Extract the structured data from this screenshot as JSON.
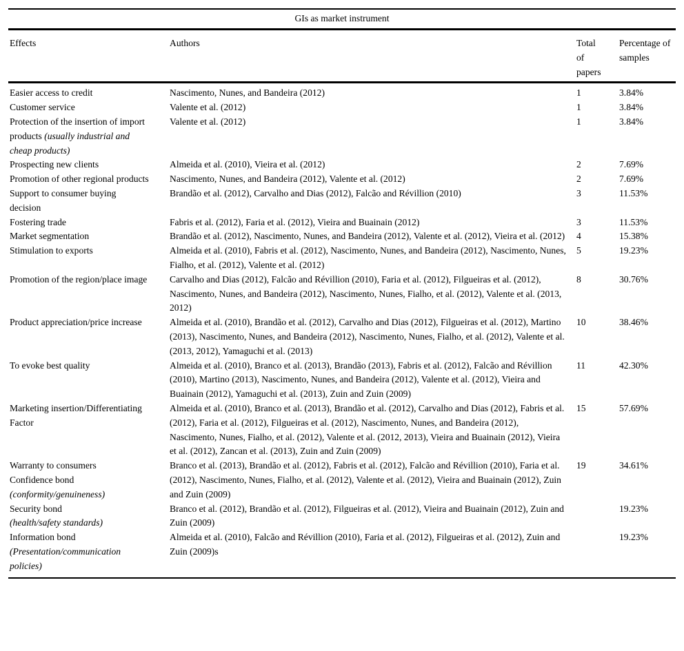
{
  "table": {
    "title": "GIs as market instrument",
    "columns": [
      "Effects",
      "Authors",
      "Total of papers",
      "Percentage of samples"
    ],
    "rows": [
      {
        "effect": [
          {
            "text": "Easier access to credit",
            "italic": false
          }
        ],
        "authors": "Nascimento, Nunes, and Bandeira (2012)",
        "total": "1",
        "percentage": "3.84%"
      },
      {
        "effect": [
          {
            "text": "Customer service",
            "italic": false
          }
        ],
        "authors": "Valente et al. (2012)",
        "total": "1",
        "percentage": "3.84%"
      },
      {
        "effect": [
          {
            "text": "Protection of the insertion of import products ",
            "italic": false
          },
          {
            "text": "(usually industrial and cheap products)",
            "italic": true
          }
        ],
        "authors": "Valente et al. (2012)",
        "total": "1",
        "percentage": "3.84%"
      },
      {
        "effect": [
          {
            "text": "Prospecting new clients",
            "italic": false
          }
        ],
        "authors": "Almeida et al. (2010), Vieira et al. (2012)",
        "total": "2",
        "percentage": "7.69%"
      },
      {
        "effect": [
          {
            "text": "Promotion of other regional products",
            "italic": false
          }
        ],
        "authors": "Nascimento, Nunes, and Bandeira (2012), Valente et al. (2012)",
        "total": "2",
        "percentage": "7.69%"
      },
      {
        "effect": [
          {
            "text": "Support to consumer buying decision",
            "italic": false
          }
        ],
        "authors": "Brandão et al. (2012), Carvalho and Dias (2012), Falcão and Révillion (2010)",
        "total": "3",
        "percentage": "11.53%"
      },
      {
        "effect": [
          {
            "text": "Fostering trade",
            "italic": false
          }
        ],
        "authors": "Fabris et al. (2012), Faria et al. (2012), Vieira and Buainain (2012)",
        "total": "3",
        "percentage": "11.53%"
      },
      {
        "effect": [
          {
            "text": "Market segmentation",
            "italic": false
          }
        ],
        "authors": "Brandão et al. (2012), Nascimento, Nunes, and Bandeira (2012), Valente et al. (2012), Vieira et al. (2012)",
        "total": "4",
        "percentage": "15.38%"
      },
      {
        "effect": [
          {
            "text": "Stimulation to exports",
            "italic": false
          }
        ],
        "authors": "Almeida et al. (2010), Fabris et al. (2012), Nascimento, Nunes, and Bandeira (2012), Nascimento, Nunes, Fialho, et al. (2012), Valente et al. (2012)",
        "total": "5",
        "percentage": "19.23%"
      },
      {
        "effect": [
          {
            "text": "Promotion of the region/place image",
            "italic": false
          }
        ],
        "authors": "Carvalho and Dias (2012), Falcão and Révillion (2010), Faria et al. (2012), Filgueiras et al. (2012), Nascimento, Nunes, and Bandeira (2012), Nascimento, Nunes, Fialho, et al. (2012), Valente et al. (2013, 2012)",
        "total": "8",
        "percentage": "30.76%"
      },
      {
        "effect": [
          {
            "text": "Product appreciation/price increase",
            "italic": false
          }
        ],
        "authors": "Almeida et al. (2010), Brandão et al. (2012), Carvalho and Dias (2012), Filgueiras et al. (2012), Martino (2013), Nascimento, Nunes, and Bandeira (2012), Nascimento, Nunes, Fialho, et al. (2012), Valente et al. (2013, 2012), Yamaguchi et al. (2013)",
        "total": "10",
        "percentage": "38.46%"
      },
      {
        "effect": [
          {
            "text": "To evoke best quality",
            "italic": false
          }
        ],
        "authors": "Almeida et al. (2010), Branco et al. (2013), Brandão (2013), Fabris et al. (2012), Falcão and Révillion (2010), Martino (2013), Nascimento, Nunes, and Bandeira (2012), Valente et al. (2012), Vieira and Buainain (2012), Yamaguchi et al. (2013), Zuin and Zuin (2009)",
        "total": "11",
        "percentage": "42.30%"
      },
      {
        "effect": [
          {
            "text": "Marketing insertion/Differentiating Factor",
            "italic": false
          }
        ],
        "authors": "Almeida et al. (2010), Branco et al. (2013), Brandão et al. (2012), Carvalho and Dias (2012), Fabris et al. (2012), Faria et al. (2012), Filgueiras et al. (2012), Nascimento, Nunes, and Bandeira (2012), Nascimento, Nunes, Fialho, et al. (2012), Valente et al. (2012, 2013), Vieira and Buainain (2012), Vieira et al. (2012), Zancan et al. (2013), Zuin and Zuin (2009)",
        "total": "15",
        "percentage": "57.69%"
      },
      {
        "effect": [
          {
            "text": "Warranty to consumers\nConfidence bond\n",
            "italic": false
          },
          {
            "text": "(conformity/genuineness)",
            "italic": true
          }
        ],
        "authors": "Branco et al. (2013), Brandão et al. (2012), Fabris et al. (2012), Falcão and Révillion (2010), Faria et al. (2012), Nascimento, Nunes, Fialho, et al. (2012), Valente et al. (2012), Vieira and Buainain (2012), Zuin and Zuin (2009)",
        "total": "19",
        "percentage": "34.61%"
      },
      {
        "effect": [
          {
            "text": "Security bond\n",
            "italic": false
          },
          {
            "text": "(health/safety standards)",
            "italic": true
          }
        ],
        "authors": "Branco et al. (2012), Brandão et al. (2012), Filgueiras et al. (2012), Vieira and Buainain (2012), Zuin and Zuin (2009)",
        "total": "",
        "percentage": "19.23%"
      },
      {
        "effect": [
          {
            "text": "Information bond\n",
            "italic": false
          },
          {
            "text": "(Presentation/communication policies)",
            "italic": true
          }
        ],
        "authors": "Almeida et al. (2010), Falcão and Révillion (2010), Faria et al. (2012), Filgueiras et al. (2012), Zuin and Zuin (2009)s",
        "total": "",
        "percentage": "19.23%"
      }
    ]
  }
}
